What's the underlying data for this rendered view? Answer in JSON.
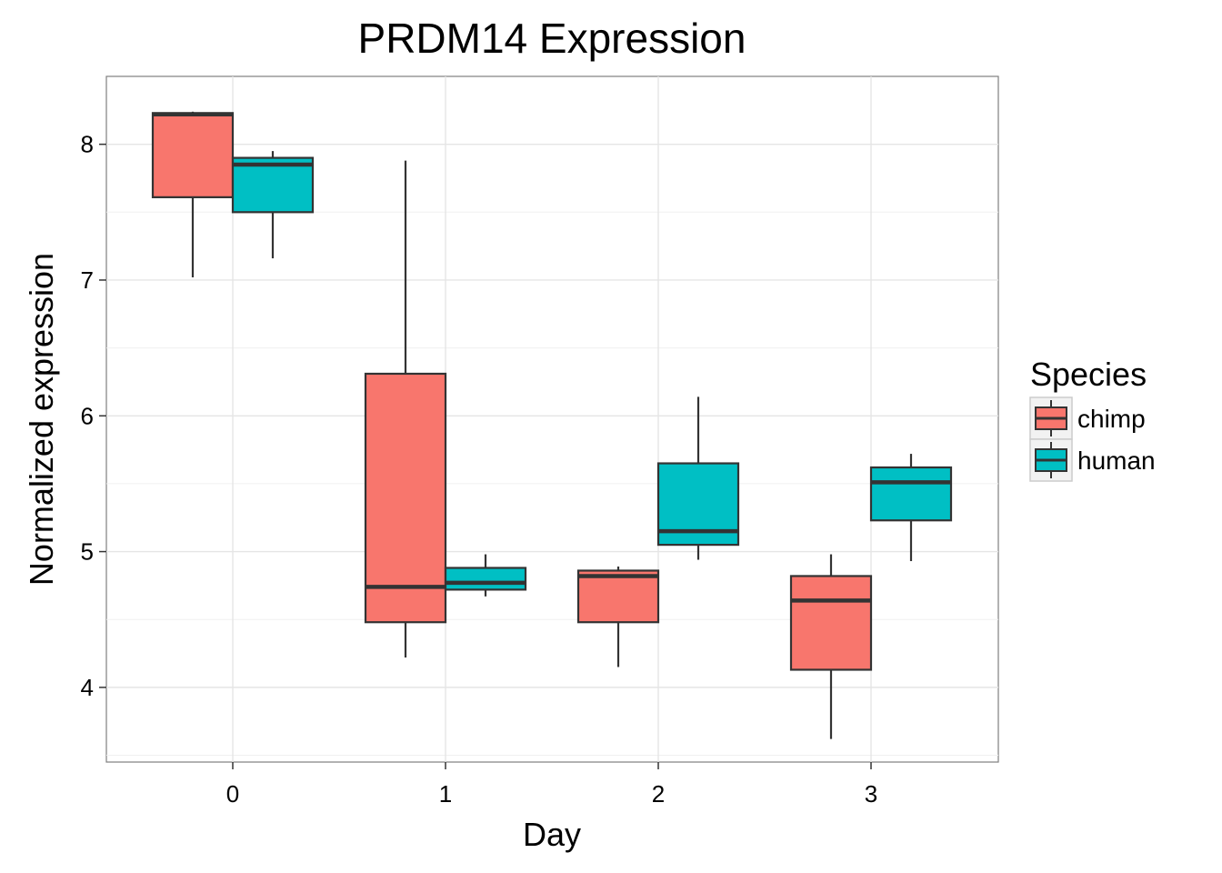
{
  "chart_data": {
    "type": "box",
    "title": "PRDM14 Expression",
    "xlabel": "Day",
    "ylabel": "Normalized expression",
    "categories": [
      "0",
      "1",
      "2",
      "3"
    ],
    "ylim": [
      3.45,
      8.5
    ],
    "yticks": [
      4,
      5,
      6,
      7,
      8
    ],
    "grid": true,
    "legend": {
      "title": "Species",
      "placement": "right",
      "entries": [
        "chimp",
        "human"
      ]
    },
    "series": [
      {
        "name": "chimp",
        "color": "#F8766D",
        "boxes": [
          {
            "category": "0",
            "whisker_low": 7.02,
            "q1": 7.61,
            "median": 8.22,
            "q3": 8.23,
            "whisker_high": 8.24
          },
          {
            "category": "1",
            "whisker_low": 4.22,
            "q1": 4.48,
            "median": 4.74,
            "q3": 6.31,
            "whisker_high": 7.88
          },
          {
            "category": "2",
            "whisker_low": 4.15,
            "q1": 4.48,
            "median": 4.82,
            "q3": 4.86,
            "whisker_high": 4.89
          },
          {
            "category": "3",
            "whisker_low": 3.62,
            "q1": 4.13,
            "median": 4.64,
            "q3": 4.82,
            "whisker_high": 4.98
          }
        ]
      },
      {
        "name": "human",
        "color": "#00BFC4",
        "boxes": [
          {
            "category": "0",
            "whisker_low": 7.16,
            "q1": 7.5,
            "median": 7.85,
            "q3": 7.9,
            "whisker_high": 7.95
          },
          {
            "category": "1",
            "whisker_low": 4.67,
            "q1": 4.72,
            "median": 4.77,
            "q3": 4.88,
            "whisker_high": 4.98
          },
          {
            "category": "2",
            "whisker_low": 4.94,
            "q1": 5.05,
            "median": 5.15,
            "q3": 5.65,
            "whisker_high": 6.14
          },
          {
            "category": "3",
            "whisker_low": 4.93,
            "q1": 5.23,
            "median": 5.51,
            "q3": 5.62,
            "whisker_high": 5.72
          }
        ]
      }
    ]
  }
}
